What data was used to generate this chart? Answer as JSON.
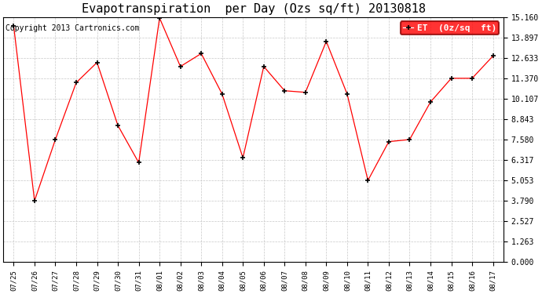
{
  "title": "Evapotranspiration  per Day (Ozs sq/ft) 20130818",
  "copyright_text": "Copyright 2013 Cartronics.com",
  "legend_label": "ET  (0z/sq  ft)",
  "x_labels": [
    "07/25",
    "07/26",
    "07/27",
    "07/28",
    "07/29",
    "07/30",
    "07/31",
    "08/01",
    "08/02",
    "08/03",
    "08/04",
    "08/05",
    "08/06",
    "08/07",
    "08/08",
    "08/09",
    "08/10",
    "08/11",
    "08/12",
    "08/13",
    "08/14",
    "08/15",
    "08/16",
    "08/17"
  ],
  "y_values": [
    14.6,
    3.79,
    7.58,
    11.1,
    12.35,
    8.45,
    6.15,
    15.1,
    12.1,
    12.9,
    10.4,
    6.45,
    12.1,
    10.6,
    10.5,
    13.65,
    10.4,
    5.05,
    7.45,
    7.58,
    9.9,
    11.37,
    11.37,
    12.75
  ],
  "line_color": "red",
  "marker": "+",
  "marker_color": "black",
  "background_color": "#ffffff",
  "grid_color": "#c8c8c8",
  "ylim": [
    0.0,
    15.16
  ],
  "yticks": [
    0.0,
    1.263,
    2.527,
    3.79,
    5.053,
    6.317,
    7.58,
    8.843,
    10.107,
    11.37,
    12.633,
    13.897,
    15.16
  ],
  "title_fontsize": 11,
  "copyright_fontsize": 7,
  "legend_fontsize": 8
}
